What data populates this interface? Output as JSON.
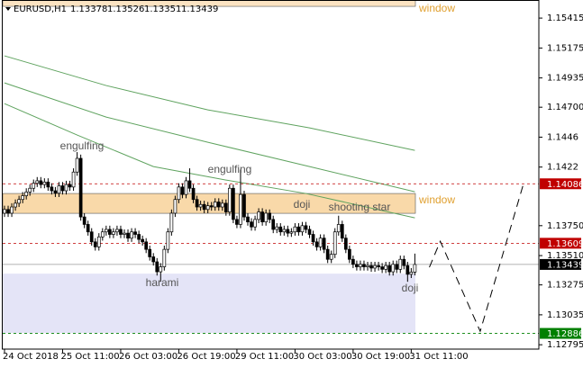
{
  "chart_data": {
    "type": "candlestick",
    "title": "EURUSD,H1",
    "categories": [
      "24 Oct 2018",
      null,
      null,
      null,
      null,
      null,
      null,
      null,
      null,
      null,
      null,
      null,
      null,
      null,
      null,
      null,
      "25 Oct 11:00",
      null,
      null,
      null,
      null,
      null,
      null,
      null,
      null,
      null,
      null,
      null,
      null,
      null,
      null,
      null,
      "26 Oct 03:00",
      null,
      null,
      null,
      null,
      null,
      null,
      null,
      null,
      null,
      null,
      null,
      null,
      null,
      null,
      null,
      "26 Oct 19:00",
      null,
      null,
      null,
      null,
      null,
      null,
      null,
      null,
      null,
      null,
      null,
      null,
      null,
      null,
      null,
      "29 Oct 11:00",
      null,
      null,
      null,
      null,
      null,
      null,
      null,
      null,
      null,
      null,
      null,
      null,
      null,
      null,
      null,
      "30 Oct 03:00",
      null,
      null,
      null,
      null,
      null,
      null,
      null,
      null,
      null,
      null,
      null,
      null,
      null,
      null,
      null,
      "30 Oct 19:00",
      null,
      null,
      null,
      null,
      null,
      null,
      null,
      null,
      null,
      null,
      null,
      null,
      null,
      null,
      null,
      "31 Oct 11:00",
      null
    ],
    "open": [
      1.1385,
      1.1388,
      1.1385,
      1.139,
      1.1393,
      1.1396,
      1.1399,
      1.1402,
      1.1405,
      1.1409,
      1.1411,
      1.1408,
      1.141,
      1.1406,
      1.1403,
      1.1401,
      1.1407,
      1.1403,
      1.1408,
      1.1406,
      1.1418,
      1.1429,
      1.1382,
      1.1376,
      1.137,
      1.1362,
      1.1358,
      1.1366,
      1.137,
      1.1372,
      1.1368,
      1.137,
      1.1372,
      1.1368,
      1.1369,
      1.1365,
      1.137,
      1.1368,
      1.1364,
      1.1362,
      1.1356,
      1.135,
      1.1346,
      1.1338,
      1.1342,
      1.1356,
      1.137,
      1.1385,
      1.1396,
      1.1406,
      1.14,
      1.1411,
      1.1405,
      1.1396,
      1.139,
      1.1392,
      1.1388,
      1.1391,
      1.139,
      1.1394,
      1.139,
      1.1393,
      1.1386,
      1.1405,
      1.138,
      1.1376,
      1.14,
      1.1382,
      1.1378,
      1.1374,
      1.138,
      1.1386,
      1.1378,
      1.1385,
      1.138,
      1.1372,
      1.1374,
      1.137,
      1.1372,
      1.1369,
      1.137,
      1.1374,
      1.137,
      1.1375,
      1.1372,
      1.1368,
      1.1362,
      1.1358,
      1.1365,
      1.1356,
      1.1348,
      1.1352,
      1.137,
      1.1376,
      1.1365,
      1.1356,
      1.1348,
      1.1344,
      1.1342,
      1.1344,
      1.1342,
      1.1343,
      1.1341,
      1.1343,
      1.1342,
      1.134,
      1.1343,
      1.1338,
      1.1344,
      1.134,
      1.1348,
      1.1343,
      1.1336,
      1.13378
    ],
    "high": [
      1.1391,
      1.1391,
      1.1393,
      1.1396,
      1.1399,
      1.1402,
      1.1405,
      1.1408,
      1.1412,
      1.1414,
      1.1414,
      1.1413,
      1.1413,
      1.1409,
      1.1406,
      1.141,
      1.141,
      1.1411,
      1.1411,
      1.1421,
      1.1434,
      1.1432,
      1.1385,
      1.1379,
      1.1373,
      1.1365,
      1.1369,
      1.1373,
      1.1375,
      1.1375,
      1.1373,
      1.1375,
      1.1375,
      1.1372,
      1.1372,
      1.1373,
      1.1373,
      1.1371,
      1.1367,
      1.1365,
      1.1359,
      1.1353,
      1.1349,
      1.1345,
      1.1359,
      1.1373,
      1.1388,
      1.1399,
      1.1409,
      1.1409,
      1.1414,
      1.1421,
      1.1408,
      1.1399,
      1.1395,
      1.1395,
      1.1394,
      1.1394,
      1.1397,
      1.1397,
      1.1396,
      1.1396,
      1.1408,
      1.1408,
      1.1383,
      1.142,
      1.1403,
      1.1385,
      1.1381,
      1.1383,
      1.1389,
      1.1389,
      1.1388,
      1.1388,
      1.1383,
      1.1377,
      1.1377,
      1.1375,
      1.1375,
      1.1373,
      1.1377,
      1.1377,
      1.1378,
      1.1378,
      1.1375,
      1.1371,
      1.1365,
      1.1368,
      1.1368,
      1.1359,
      1.1355,
      1.1373,
      1.1383,
      1.1379,
      1.1368,
      1.1359,
      1.1351,
      1.1347,
      1.1347,
      1.1347,
      1.1346,
      1.1346,
      1.1346,
      1.1346,
      1.1345,
      1.1346,
      1.1346,
      1.1347,
      1.1347,
      1.1351,
      1.1351,
      1.1346,
      1.1341,
      1.13526
    ],
    "low": [
      1.1382,
      1.1382,
      1.1382,
      1.1387,
      1.139,
      1.1393,
      1.1396,
      1.1399,
      1.1402,
      1.1406,
      1.1405,
      1.1405,
      1.1403,
      1.14,
      1.1398,
      1.1398,
      1.14,
      1.14,
      1.1403,
      1.1403,
      1.1415,
      1.1379,
      1.1373,
      1.1367,
      1.1359,
      1.1355,
      1.1355,
      1.1363,
      1.1367,
      1.1365,
      1.1365,
      1.1367,
      1.1365,
      1.1365,
      1.1362,
      1.1362,
      1.1365,
      1.1361,
      1.1359,
      1.1353,
      1.1347,
      1.1343,
      1.1335,
      1.133,
      1.1339,
      1.1353,
      1.1367,
      1.1382,
      1.1393,
      1.1397,
      1.1397,
      1.1402,
      1.1393,
      1.1387,
      1.1387,
      1.1385,
      1.1385,
      1.1387,
      1.1387,
      1.1387,
      1.1387,
      1.1383,
      1.1383,
      1.1377,
      1.1373,
      1.1373,
      1.1379,
      1.1375,
      1.1371,
      1.1371,
      1.1377,
      1.1375,
      1.1375,
      1.1377,
      1.1369,
      1.1369,
      1.1367,
      1.1367,
      1.1366,
      1.1366,
      1.1367,
      1.1367,
      1.1367,
      1.1369,
      1.1365,
      1.1359,
      1.1355,
      1.1355,
      1.1353,
      1.1345,
      1.1345,
      1.1349,
      1.1367,
      1.1362,
      1.1353,
      1.1345,
      1.1341,
      1.1339,
      1.1339,
      1.1339,
      1.1339,
      1.1338,
      1.1338,
      1.1339,
      1.1337,
      1.1337,
      1.1335,
      1.1335,
      1.1337,
      1.1337,
      1.134,
      1.133,
      1.1333,
      1.13351
    ],
    "close": [
      1.1388,
      1.1385,
      1.139,
      1.1393,
      1.1396,
      1.1399,
      1.1402,
      1.1405,
      1.1409,
      1.1411,
      1.1408,
      1.141,
      1.1406,
      1.1403,
      1.1401,
      1.1407,
      1.1403,
      1.1408,
      1.1406,
      1.1418,
      1.1429,
      1.1382,
      1.1376,
      1.137,
      1.1362,
      1.1358,
      1.1366,
      1.137,
      1.1372,
      1.1368,
      1.137,
      1.1372,
      1.1368,
      1.1369,
      1.1365,
      1.137,
      1.1368,
      1.1364,
      1.1362,
      1.1356,
      1.135,
      1.1346,
      1.1338,
      1.1342,
      1.1356,
      1.137,
      1.1385,
      1.1396,
      1.1406,
      1.14,
      1.1411,
      1.1405,
      1.1396,
      1.139,
      1.1392,
      1.1388,
      1.1391,
      1.139,
      1.1394,
      1.139,
      1.1393,
      1.1386,
      1.1405,
      1.138,
      1.1376,
      1.14,
      1.1382,
      1.1378,
      1.1374,
      1.138,
      1.1386,
      1.1378,
      1.1385,
      1.138,
      1.1372,
      1.1374,
      1.137,
      1.1372,
      1.1369,
      1.137,
      1.1374,
      1.137,
      1.1375,
      1.1372,
      1.1368,
      1.1362,
      1.1358,
      1.1365,
      1.1356,
      1.1348,
      1.1352,
      1.137,
      1.1376,
      1.1365,
      1.1356,
      1.1348,
      1.1344,
      1.1342,
      1.1344,
      1.1342,
      1.1343,
      1.1341,
      1.1343,
      1.1342,
      1.134,
      1.1343,
      1.1338,
      1.1344,
      1.134,
      1.1348,
      1.1343,
      1.1336,
      1.13378,
      1.13439
    ],
    "up_color": "#ffffff",
    "down_color": "#000000",
    "wick_color": "#000000",
    "moving_averages": [
      {
        "color": "#5fa35f",
        "x": [
          0,
          28,
          56,
          84,
          113
        ],
        "values": [
          1.15112,
          1.14874,
          1.14679,
          1.14534,
          1.14354
        ]
      },
      {
        "color": "#5fa35f",
        "x": [
          0,
          28,
          56,
          84,
          113
        ],
        "values": [
          1.14895,
          1.14621,
          1.14419,
          1.14224,
          1.14022
        ]
      },
      {
        "color": "#5fa35f",
        "x": [
          0,
          20,
          41,
          61,
          83,
          113
        ],
        "values": [
          1.14729,
          1.14477,
          1.14224,
          1.14116,
          1.14008,
          1.13813
        ]
      }
    ],
    "forecast": {
      "color": "#000000",
      "x": [
        117,
        120,
        131,
        143
      ],
      "values": [
        1.13416,
        1.13625,
        1.12903,
        1.14094
      ]
    },
    "zones": [
      {
        "range": [
          1.15509,
          1.156
        ],
        "color": "#fbe3c2"
      },
      {
        "range": [
          1.13849,
          1.14008
        ],
        "color": "#f9d9a9"
      },
      {
        "range": [
          1.12889,
          1.13365
        ],
        "color": "#e4e4f7"
      }
    ],
    "levels": [
      {
        "value": 1.14086,
        "color": "#c00000"
      },
      {
        "value": 1.13609,
        "color": "#c00000"
      },
      {
        "value": 1.12886,
        "color": "#008000"
      }
    ],
    "bid_color": "#9a9a9a",
    "annotations": [
      "engulfing",
      "engulfing",
      "harami",
      "doji",
      "shooting star",
      "doji",
      "window",
      "window"
    ],
    "ylim": [
      1.1276,
      1.1556
    ],
    "yticks": [
      1.15415,
      1.15175,
      1.14935,
      {
        "value": 1.147,
        "label": "1.14700"
      },
      1.1446,
      1.1422,
      {
        "value": 1.1375,
        "label": "1.13750"
      },
      {
        "value": 1.1351,
        "label": "1.13510"
      },
      1.13275,
      1.13035,
      1.12795
    ]
  }
}
